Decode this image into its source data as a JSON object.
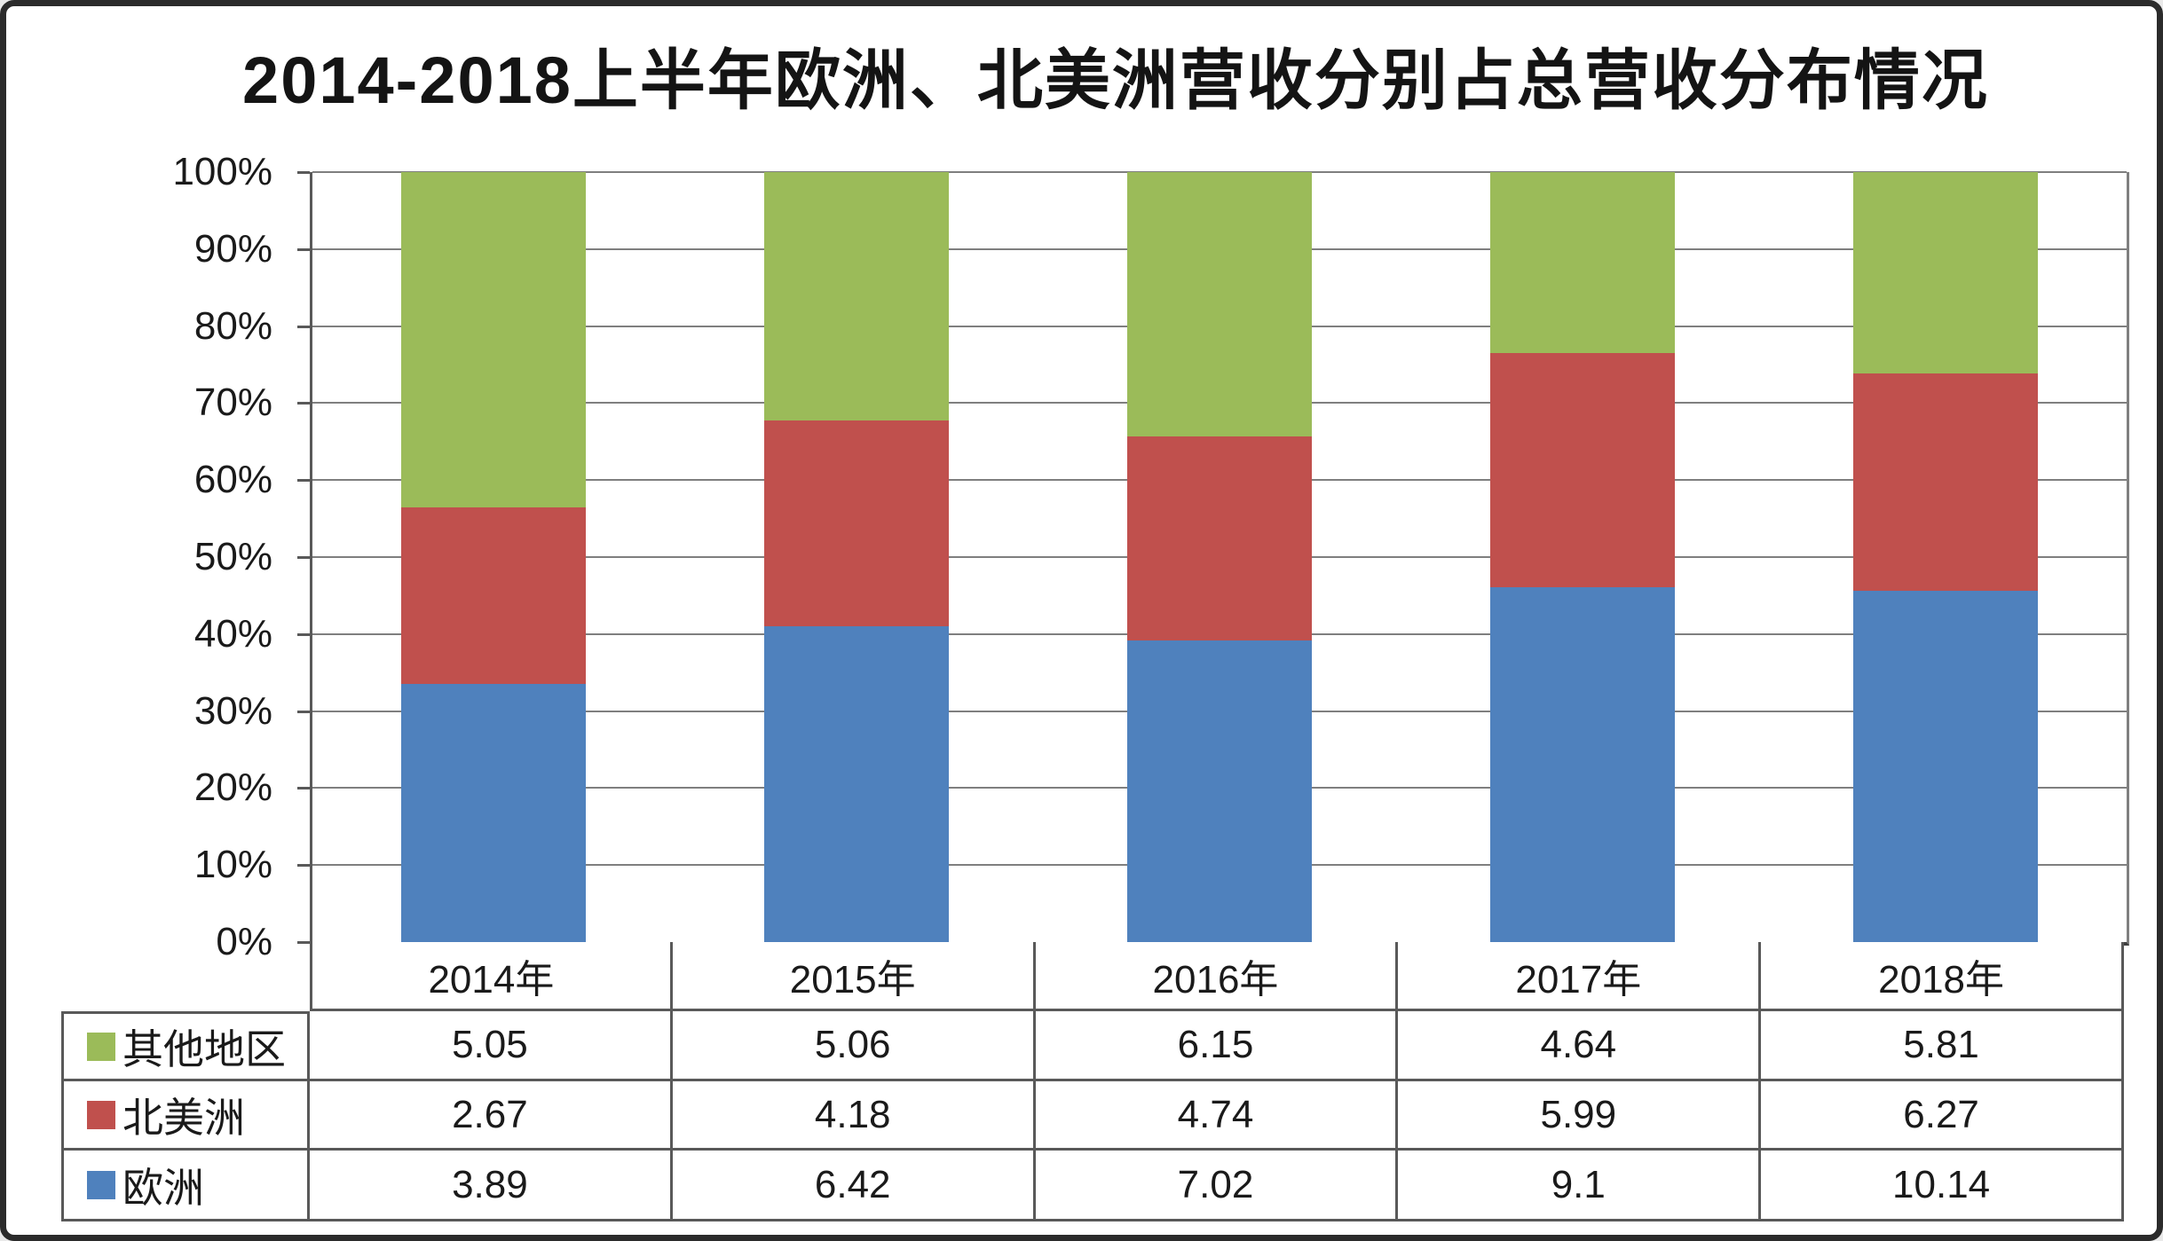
{
  "chart_data": {
    "type": "bar",
    "variant": "stacked-100-percent",
    "title": "2014-2018上半年欧洲、北美洲营收分别占总营收分布情况",
    "categories": [
      "2014年",
      "2015年",
      "2016年",
      "2017年",
      "2018年"
    ],
    "series": [
      {
        "name": "欧洲",
        "slug": "europe",
        "color": "#4F81BD",
        "values": [
          3.89,
          6.42,
          7.02,
          9.1,
          10.14
        ]
      },
      {
        "name": "北美洲",
        "slug": "north-america",
        "color": "#C0504D",
        "values": [
          2.67,
          4.18,
          4.74,
          5.99,
          6.27
        ]
      },
      {
        "name": "其他地区",
        "slug": "other-regions",
        "color": "#9BBB59",
        "values": [
          5.05,
          5.06,
          6.15,
          4.64,
          5.81
        ]
      }
    ],
    "table_row_order_top_to_bottom": [
      "其他地区",
      "北美洲",
      "欧洲"
    ],
    "y_axis": {
      "ticks": [
        "0%",
        "10%",
        "20%",
        "30%",
        "40%",
        "50%",
        "60%",
        "70%",
        "80%",
        "90%",
        "100%"
      ],
      "min": 0,
      "max": 100,
      "grid": true
    },
    "legend_position": "data-table-left",
    "grid_color": "#7F7F7F"
  }
}
